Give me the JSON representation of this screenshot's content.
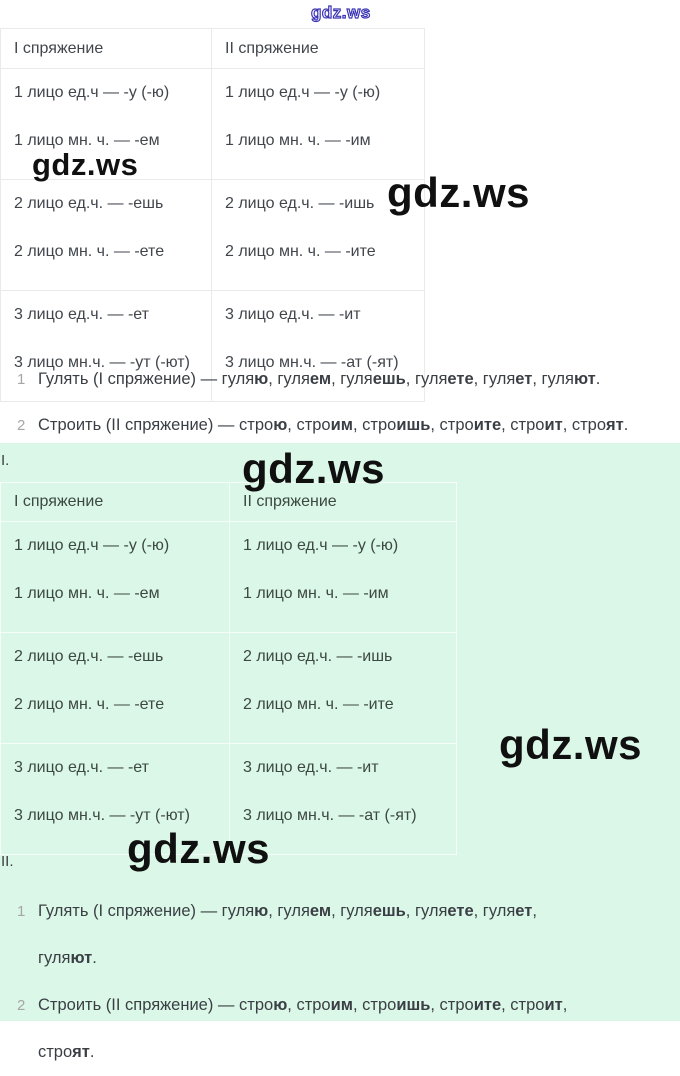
{
  "brand": {
    "watermark_text": "gdz.ws"
  },
  "colors": {
    "watermark_outline_blue": "#3c35b5",
    "watermark_black": "#101010",
    "green_background": "#dbf7e7",
    "list_number_gray": "#a6a6a6",
    "table_text": "#41464c"
  },
  "conjugation_table": {
    "headers": [
      "I спряжение",
      "II спряжение"
    ],
    "rows": [
      [
        [
          "1 лицо ед.ч — -у (-ю)",
          "1 лицо мн. ч. — -ем"
        ],
        [
          "1 лицо ед.ч — -у (-ю)",
          "1 лицо мн. ч. — -им"
        ]
      ],
      [
        [
          "2 лицо ед.ч. — -ешь",
          "2 лицо мн. ч. — -ете"
        ],
        [
          "2 лицо ед.ч. — -ишь",
          "2 лицо мн. ч. — -ите"
        ]
      ],
      [
        [
          "3 лицо ед.ч. — -ет",
          "3 лицо мн.ч. — -ут (-ют)"
        ],
        [
          "3 лицо ед.ч. — -ит",
          "3 лицо мн.ч. — -ат (-ят)"
        ]
      ]
    ]
  },
  "section_white": {
    "items": [
      {
        "number": "1",
        "segments": [
          {
            "t": "Гулять (I спряжение) — гуля"
          },
          {
            "t": "ю",
            "b": 1
          },
          {
            "t": ", гуля"
          },
          {
            "t": "ем",
            "b": 1
          },
          {
            "t": ", гуля"
          },
          {
            "t": "ешь",
            "b": 1
          },
          {
            "t": ", гуля"
          },
          {
            "t": "ете",
            "b": 1
          },
          {
            "t": ", гуля"
          },
          {
            "t": "ет",
            "b": 1
          },
          {
            "t": ", гуля"
          },
          {
            "t": "ют",
            "b": 1
          },
          {
            "t": "."
          }
        ]
      },
      {
        "number": "2",
        "segments": [
          {
            "t": "Строить (II спряжение) — стро"
          },
          {
            "t": "ю",
            "b": 1
          },
          {
            "t": ", стро"
          },
          {
            "t": "им",
            "b": 1
          },
          {
            "t": ", стро"
          },
          {
            "t": "ишь",
            "b": 1
          },
          {
            "t": ", стро"
          },
          {
            "t": "ите",
            "b": 1
          },
          {
            "t": ", стро"
          },
          {
            "t": "ит",
            "b": 1
          },
          {
            "t": ", стро"
          },
          {
            "t": "ят",
            "b": 1
          },
          {
            "t": "."
          }
        ]
      }
    ]
  },
  "section_green": {
    "label_top": "I.",
    "label_bottom": "II.",
    "items": [
      {
        "number": "1",
        "segments": [
          {
            "t": "Гулять (I спряжение) — гуля"
          },
          {
            "t": "ю",
            "b": 1
          },
          {
            "t": ", гуля"
          },
          {
            "t": "ем",
            "b": 1
          },
          {
            "t": ", гуля"
          },
          {
            "t": "ешь",
            "b": 1
          },
          {
            "t": ", гуля"
          },
          {
            "t": "ете",
            "b": 1
          },
          {
            "t": ", гуля"
          },
          {
            "t": "ет",
            "b": 1
          },
          {
            "t": ","
          },
          {
            "br": 1
          },
          {
            "t": "гуля"
          },
          {
            "t": "ют",
            "b": 1
          },
          {
            "t": "."
          }
        ]
      },
      {
        "number": "2",
        "segments": [
          {
            "t": "Строить (II спряжение) — стро"
          },
          {
            "t": "ю",
            "b": 1
          },
          {
            "t": ", стро"
          },
          {
            "t": "им",
            "b": 1
          },
          {
            "t": ", стро"
          },
          {
            "t": "ишь",
            "b": 1
          },
          {
            "t": ", стро"
          },
          {
            "t": "ите",
            "b": 1
          },
          {
            "t": ", стро"
          },
          {
            "t": "ит",
            "b": 1
          },
          {
            "t": ","
          },
          {
            "br": 1
          },
          {
            "t": "стро"
          },
          {
            "t": "ят",
            "b": 1
          },
          {
            "t": "."
          }
        ]
      }
    ]
  }
}
